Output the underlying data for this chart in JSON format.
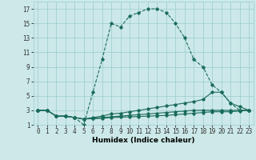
{
  "xlabel": "Humidex (Indice chaleur)",
  "background_color": "#cce8e8",
  "line_color": "#1a6b5a",
  "grid_color": "#99cccc",
  "xlim": [
    -0.5,
    23.5
  ],
  "ylim": [
    1,
    18
  ],
  "xticks": [
    0,
    1,
    2,
    3,
    4,
    5,
    6,
    7,
    8,
    9,
    10,
    11,
    12,
    13,
    14,
    15,
    16,
    17,
    18,
    19,
    20,
    21,
    22,
    23
  ],
  "yticks": [
    1,
    3,
    5,
    7,
    9,
    11,
    13,
    15,
    17
  ],
  "series": [
    {
      "x": [
        0,
        1,
        2,
        3,
        4,
        5,
        6,
        7,
        8,
        9,
        10,
        11,
        12,
        13,
        14,
        15,
        16,
        17,
        18,
        19,
        20,
        21,
        22,
        23
      ],
      "y": [
        3,
        3,
        2.2,
        2.2,
        2,
        1,
        5.5,
        10,
        15,
        14.5,
        16,
        16.5,
        17,
        17,
        16.5,
        15,
        13,
        10,
        9,
        6.5,
        5.5,
        4,
        3,
        3
      ],
      "style": "dashed"
    },
    {
      "x": [
        0,
        1,
        2,
        3,
        4,
        5,
        6,
        7,
        8,
        9,
        10,
        11,
        12,
        13,
        14,
        15,
        16,
        17,
        18,
        19,
        20,
        21,
        22,
        23
      ],
      "y": [
        3,
        3,
        2.2,
        2.2,
        2,
        1.8,
        2,
        2.2,
        2.5,
        2.6,
        2.8,
        3,
        3.2,
        3.4,
        3.6,
        3.8,
        4,
        4.2,
        4.5,
        5.5,
        5.5,
        4,
        3.5,
        3
      ],
      "style": "solid"
    },
    {
      "x": [
        0,
        1,
        2,
        3,
        4,
        5,
        6,
        7,
        8,
        9,
        10,
        11,
        12,
        13,
        14,
        15,
        16,
        17,
        18,
        19,
        20,
        21,
        22,
        23
      ],
      "y": [
        3,
        3,
        2.2,
        2.2,
        2,
        1.8,
        1.9,
        2,
        2.1,
        2.2,
        2.3,
        2.4,
        2.5,
        2.6,
        2.7,
        2.8,
        2.9,
        3,
        3,
        3,
        3,
        3,
        3,
        3
      ],
      "style": "solid"
    },
    {
      "x": [
        0,
        1,
        2,
        3,
        4,
        5,
        6,
        7,
        8,
        9,
        10,
        11,
        12,
        13,
        14,
        15,
        16,
        17,
        18,
        19,
        20,
        21,
        22,
        23
      ],
      "y": [
        3,
        3,
        2.2,
        2.2,
        2,
        1.8,
        1.85,
        1.9,
        2,
        2.05,
        2.1,
        2.15,
        2.2,
        2.25,
        2.3,
        2.4,
        2.5,
        2.6,
        2.7,
        2.8,
        2.8,
        2.8,
        2.9,
        3
      ],
      "style": "solid"
    }
  ],
  "tick_fontsize": 5.5,
  "label_fontsize": 6.5
}
